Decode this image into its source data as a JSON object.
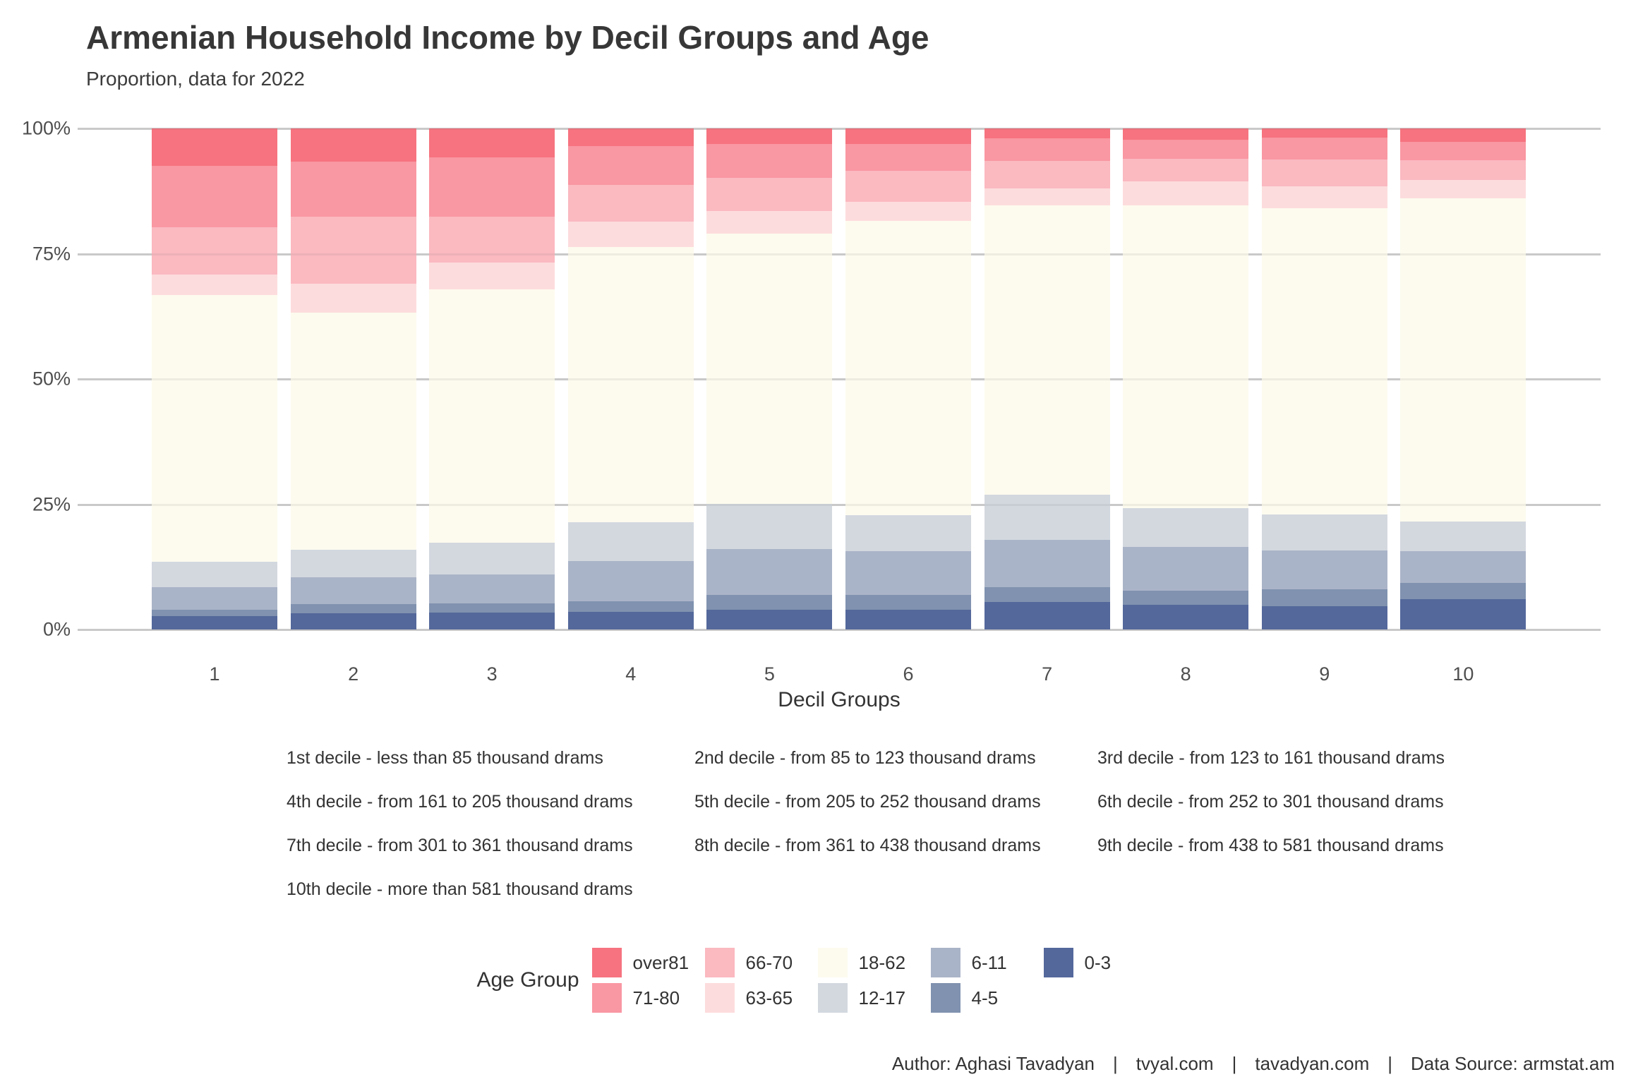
{
  "header": {
    "title": "Armenian Household Income by Decil Groups and Age",
    "subtitle": "Proportion, data for 2022"
  },
  "chart_data": {
    "type": "bar",
    "variant": "stacked-percent",
    "title": "Armenian Household Income by Decil Groups and Age",
    "subtitle": "Proportion, data for 2022",
    "xlabel": "Decil Groups",
    "ylabel": "",
    "ylim": [
      0,
      100
    ],
    "grid": "horizontal",
    "legend_position": "bottom",
    "y_ticks_top_to_bottom": [
      "100%",
      "75%",
      "50%",
      "25%",
      "0%"
    ],
    "categories": [
      "1",
      "2",
      "3",
      "4",
      "5",
      "6",
      "7",
      "8",
      "9",
      "10"
    ],
    "stack_order_bottom_to_top": [
      "0-3",
      "4-5",
      "6-11",
      "12-17",
      "18-62",
      "63-65",
      "66-70",
      "71-80",
      "over81"
    ],
    "series": [
      {
        "name": "0-3",
        "color": "#54689b",
        "values": [
          2.7,
          3.3,
          3.4,
          3.5,
          4.0,
          3.9,
          5.5,
          4.9,
          4.7,
          6.1
        ]
      },
      {
        "name": "4-5",
        "color": "#8092af",
        "values": [
          1.3,
          1.8,
          1.8,
          2.2,
          2.9,
          3.0,
          2.9,
          2.8,
          3.3,
          3.2
        ]
      },
      {
        "name": "6-11",
        "color": "#aab4c8",
        "values": [
          4.4,
          5.3,
          5.8,
          8.0,
          9.2,
          8.8,
          9.5,
          8.8,
          7.8,
          6.3
        ]
      },
      {
        "name": "12-17",
        "color": "#d3d8df",
        "values": [
          5.1,
          5.5,
          6.4,
          7.7,
          9.0,
          7.1,
          9.0,
          7.8,
          7.1,
          5.9
        ]
      },
      {
        "name": "18-62",
        "color": "#fdfbee",
        "values": [
          53.2,
          47.3,
          50.5,
          55.0,
          53.9,
          58.7,
          57.8,
          60.3,
          61.2,
          64.6
        ]
      },
      {
        "name": "63-65",
        "color": "#fddcdd",
        "values": [
          4.2,
          5.8,
          5.4,
          5.0,
          4.5,
          3.9,
          3.4,
          4.8,
          4.3,
          3.6
        ]
      },
      {
        "name": "66-70",
        "color": "#fbb9c0",
        "values": [
          9.4,
          13.4,
          9.1,
          7.3,
          6.6,
          6.2,
          5.4,
          4.6,
          5.4,
          4.0
        ]
      },
      {
        "name": "71-80",
        "color": "#f997a2",
        "values": [
          12.3,
          11.0,
          11.9,
          7.8,
          6.8,
          5.3,
          4.5,
          3.7,
          4.4,
          3.6
        ]
      },
      {
        "name": "over81",
        "color": "#f6737f",
        "values": [
          7.4,
          6.6,
          5.7,
          3.5,
          3.1,
          3.1,
          2.0,
          2.3,
          1.8,
          2.7
        ]
      }
    ]
  },
  "decile_notes": {
    "columns": 3,
    "items": [
      "1st decile - less than 85 thousand drams",
      "2nd decile - from 85 to 123 thousand drams",
      "3rd decile - from 123 to 161 thousand drams",
      "4th decile - from 161 to 205 thousand drams",
      "5th decile - from 205 to 252 thousand drams",
      "6th decile - from 252 to 301 thousand drams",
      "7th decile - from 301 to 361 thousand drams",
      "8th decile - from 361 to 438 thousand drams",
      "9th decile - from 438 to 581 thousand drams",
      "10th decile - more than 581 thousand drams"
    ]
  },
  "legend": {
    "title": "Age Group",
    "items_display_order": [
      {
        "label": "over81",
        "color": "#f6737f"
      },
      {
        "label": "71-80",
        "color": "#f997a2"
      },
      {
        "label": "66-70",
        "color": "#fbb9c0"
      },
      {
        "label": "63-65",
        "color": "#fddcdd"
      },
      {
        "label": "18-62",
        "color": "#fdfbee"
      },
      {
        "label": "12-17",
        "color": "#d3d8df"
      },
      {
        "label": "6-11",
        "color": "#aab4c8"
      },
      {
        "label": "4-5",
        "color": "#8092af"
      },
      {
        "label": "0-3",
        "color": "#54689b"
      }
    ]
  },
  "footer": {
    "separator": "|",
    "parts": [
      "Author: Aghasi Tavadyan",
      "tvyal.com",
      "tavadyan.com",
      "Data Source: armstat.am"
    ]
  }
}
